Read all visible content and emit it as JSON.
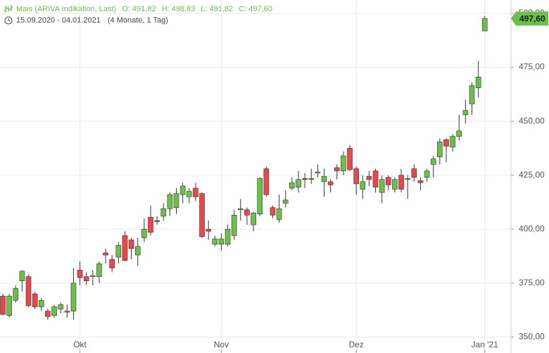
{
  "chart_data": {
    "type": "candlestick",
    "title": "Mais (ARIVA Indikation, Last)",
    "info": [
      "O: 491,82",
      "H: 498,83",
      "L: 491,82",
      "C: 497,60"
    ],
    "date_range": "15.09.2020 - 04.01.2021",
    "period": "(4 Monate, 1 Tag)",
    "categories": [
      null,
      null,
      null,
      null,
      null,
      null,
      null,
      null,
      null,
      null,
      null,
      null,
      "Okt",
      null,
      null,
      null,
      null,
      null,
      null,
      null,
      null,
      null,
      null,
      null,
      null,
      null,
      null,
      null,
      null,
      null,
      null,
      null,
      null,
      null,
      "Nov",
      null,
      null,
      null,
      null,
      null,
      null,
      null,
      null,
      null,
      null,
      null,
      null,
      null,
      null,
      null,
      null,
      null,
      null,
      null,
      null,
      "Dez",
      null,
      null,
      null,
      null,
      null,
      null,
      null,
      null,
      null,
      null,
      null,
      null,
      null,
      null,
      null,
      null,
      null,
      null,
      null,
      "Jan '21"
    ],
    "open": [
      369,
      360,
      367,
      376,
      378,
      370,
      364,
      362,
      360,
      363,
      362,
      362,
      381,
      378,
      378,
      378,
      389,
      386,
      387,
      397,
      395,
      388,
      396,
      405.5,
      404,
      406,
      409.5,
      410,
      416,
      415,
      419,
      416.5,
      400,
      393,
      393,
      393,
      397,
      409,
      409,
      402,
      407,
      428,
      410,
      404.5,
      412,
      419,
      419.5,
      423.5,
      423,
      426,
      422,
      422,
      428.5,
      427,
      437.5,
      428,
      418.5,
      424.5,
      427,
      417,
      424,
      418.5,
      425,
      423,
      428,
      422.5,
      424,
      430,
      433.5,
      441.5,
      438,
      443,
      453,
      458,
      465.5,
      491.82
    ],
    "high": [
      370,
      370,
      374,
      381,
      379,
      371,
      368,
      363,
      365,
      366,
      365,
      382,
      385,
      380,
      381,
      385,
      391,
      388,
      394,
      399,
      396,
      396,
      405,
      411,
      406,
      412,
      417,
      419,
      421.5,
      419,
      421.5,
      417,
      404,
      397,
      398,
      402,
      409,
      414,
      410,
      408,
      424,
      429,
      411,
      416,
      418,
      424,
      427,
      426,
      428,
      430,
      428,
      423,
      430,
      436,
      439,
      429,
      425,
      427,
      428,
      425,
      425,
      424,
      428,
      425,
      430,
      424,
      428,
      434,
      442,
      442,
      444,
      453,
      460,
      468,
      478,
      498.83
    ],
    "low": [
      360,
      359,
      366,
      371,
      364,
      363,
      362,
      358,
      359,
      361,
      359,
      358,
      374,
      374,
      374,
      375,
      384,
      380,
      384,
      385,
      386,
      383,
      394,
      397,
      402,
      404,
      406,
      407,
      412,
      412,
      413,
      396,
      395,
      392,
      390,
      392,
      395,
      404,
      402,
      399,
      406,
      415,
      405,
      403,
      410,
      418,
      417,
      419,
      421,
      424,
      415,
      417,
      423,
      425,
      427,
      416,
      414,
      420,
      417,
      412,
      418,
      417,
      417,
      414,
      422,
      418,
      422,
      424,
      430,
      431,
      436,
      441,
      449,
      453,
      461,
      491.82
    ],
    "close": [
      360.5,
      369,
      372.5,
      380.5,
      364.5,
      364,
      367,
      359.5,
      364,
      365,
      361.5,
      375,
      377.5,
      376,
      378.5,
      384,
      388,
      382,
      392.5,
      385.5,
      391,
      392,
      400,
      398.5,
      403.5,
      409.5,
      416,
      416.5,
      420,
      417.5,
      415,
      396.5,
      399,
      395.5,
      395.5,
      400,
      406.5,
      409.5,
      406.5,
      407.5,
      423.5,
      416,
      406.5,
      409.5,
      413.5,
      421.5,
      423,
      423,
      423.5,
      426.5,
      424.5,
      420.5,
      427,
      434,
      427.5,
      421,
      422,
      423,
      419.5,
      423,
      420.5,
      423,
      418.5,
      423.5,
      424,
      421.5,
      427,
      432.5,
      440.5,
      438.5,
      443,
      445.5,
      455,
      466.5,
      470.5,
      497.6
    ],
    "up_color": "#6cc04a",
    "down_color": "#e8474c",
    "ylim": [
      342.6,
      506.2
    ],
    "yticks": [
      {
        "value": 350,
        "label": "350,00"
      },
      {
        "value": 375,
        "label": "375,00"
      },
      {
        "value": 400,
        "label": "400,00"
      },
      {
        "value": 425,
        "label": "425,00"
      },
      {
        "value": 450,
        "label": "450,00"
      },
      {
        "value": 475,
        "label": "475,00"
      },
      {
        "value": 500,
        "label": "500,00"
      }
    ],
    "last_price": {
      "value": 497.6,
      "label": "497,60"
    },
    "grid": true
  }
}
